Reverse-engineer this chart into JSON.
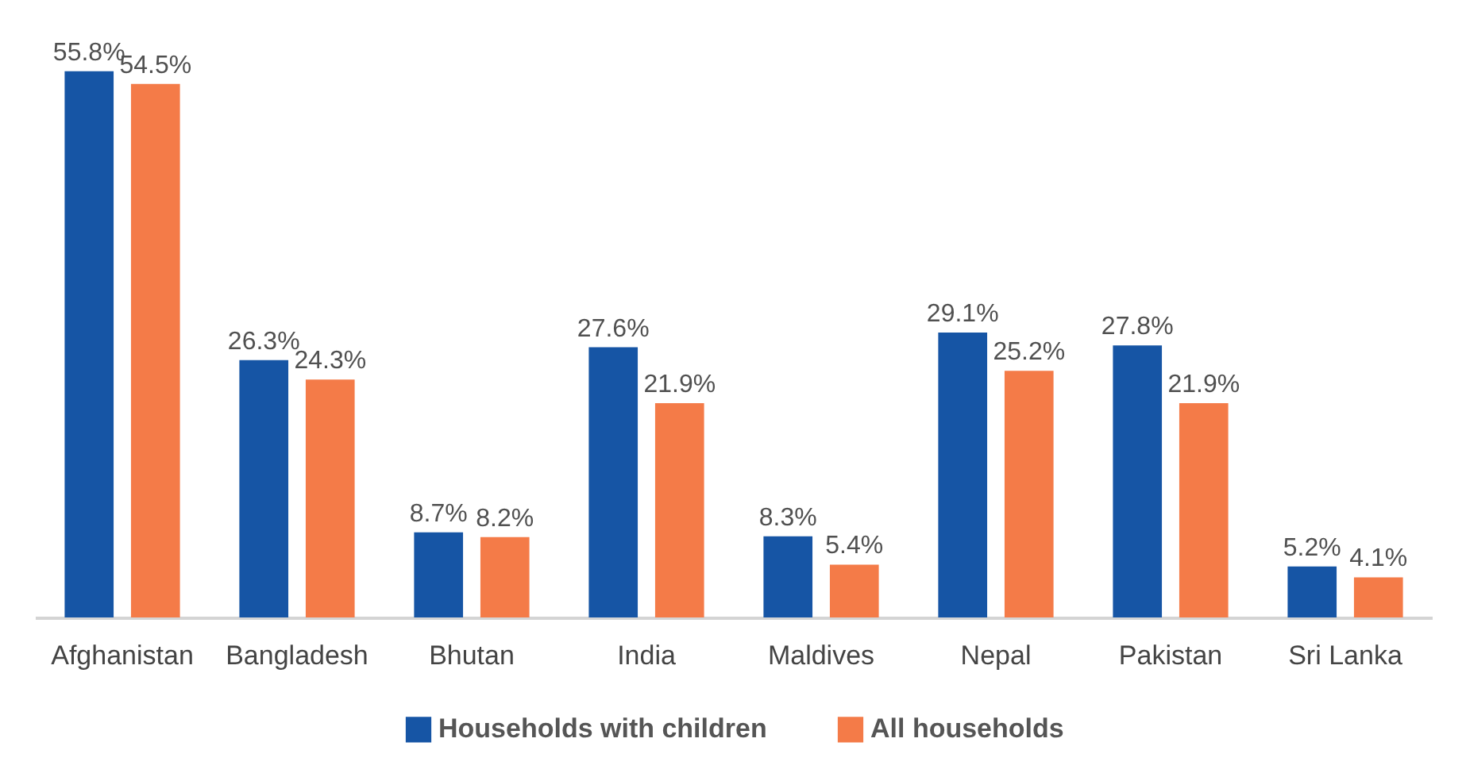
{
  "chart_data": {
    "type": "bar",
    "categories": [
      "Afghanistan",
      "Bangladesh",
      "Bhutan",
      "India",
      "Maldives",
      "Nepal",
      "Pakistan",
      "Sri Lanka"
    ],
    "series": [
      {
        "name": "Households with children",
        "color": "#1655a5",
        "values": [
          55.8,
          26.3,
          8.7,
          27.6,
          8.3,
          29.1,
          27.8,
          5.2
        ],
        "value_labels": [
          "55.8%",
          "26.3%",
          "8.7%",
          "27.6%",
          "8.3%",
          "29.1%",
          "27.8%",
          "5.2%"
        ]
      },
      {
        "name": "All households",
        "color": "#f47b48",
        "values": [
          54.5,
          24.3,
          8.2,
          21.9,
          5.4,
          25.2,
          21.9,
          4.1
        ],
        "value_labels": [
          "54.5%",
          "24.3%",
          "8.2%",
          "21.9%",
          "5.4%",
          "25.2%",
          "21.9%",
          "4.1%"
        ]
      }
    ],
    "legend": "bottom",
    "tick_labels": "x"
  }
}
